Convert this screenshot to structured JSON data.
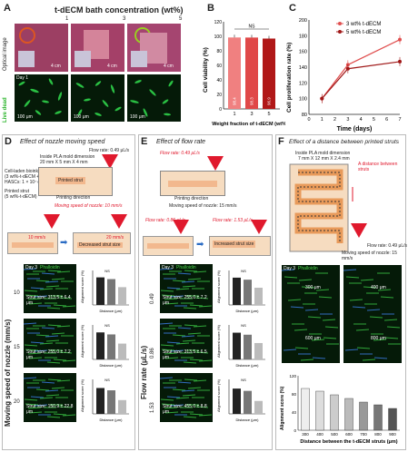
{
  "panelA": {
    "label": "A",
    "title": "t-dECM bath concentration (wt%)",
    "cols": [
      "1",
      "3",
      "5"
    ],
    "row1": "Optical image",
    "row2": "Live dead",
    "day": "Day 1",
    "scale_opt": "4 cm",
    "scale_mic": "100 μm"
  },
  "panelB": {
    "label": "B",
    "chart_data": {
      "type": "bar",
      "categories": [
        "1",
        "3",
        "5"
      ],
      "values": [
        98.4,
        98.3,
        96.9
      ],
      "bar_labels": [
        "98.4",
        "98.3",
        "96.9"
      ],
      "xlabel": "Weight fraction of t-dECM (wt%)",
      "ylabel": "Cell viability (%)",
      "ylim": [
        0,
        120
      ],
      "yticks": [
        "0",
        "20",
        "40",
        "60",
        "80",
        "100",
        "120"
      ],
      "annotation": "NS",
      "colors": [
        "#f08080",
        "#e04848",
        "#b01818"
      ]
    }
  },
  "panelC": {
    "label": "C",
    "chart_data": {
      "type": "line",
      "x": [
        1,
        3,
        7
      ],
      "series": [
        {
          "name": "3 wt% t-dECM",
          "values": [
            100,
            143,
            175
          ],
          "color": "#e05050"
        },
        {
          "name": "5 wt% t-dECM",
          "values": [
            100,
            138,
            147
          ],
          "color": "#a01818"
        }
      ],
      "xlabel": "Time (days)",
      "ylabel": "Cell proliferation rate (%)",
      "xlim": [
        0,
        7
      ],
      "ylim": [
        80,
        200
      ],
      "yticks": [
        "80",
        "100",
        "120",
        "140",
        "160",
        "180",
        "200"
      ],
      "xticks": [
        "0",
        "1",
        "2",
        "3",
        "4",
        "5",
        "6",
        "7"
      ]
    }
  },
  "panelD": {
    "label": "D",
    "title": "Effect of nozzle moving speed",
    "mold": "Inside PLA mold dimension",
    "mold_dim": "20 mm X 5 mm X 4 mm",
    "flow": "Flow rate: 0.49 μL/s",
    "bioink1": "Cell-laden bioink",
    "bioink2": "(3 wt%-t-dECM +",
    "bioink3": "HASCs: 1 × 10⁷ cells)",
    "strut": "Printed strut",
    "bath": "(5 wt%-t-dECM)",
    "printed": "Printed strut",
    "direction": "Printing direction",
    "moving": "Moving speed of nozzle: 10 mm/s",
    "speed_a": "10 mm/s",
    "speed_b": "20 mm/s",
    "decreased": "Decreased strut size",
    "axis": "Moving speed of nozzle (mm/s)",
    "rows": [
      {
        "value": "10",
        "strut": "Strut size: 313.5 ± 6.4 μm"
      },
      {
        "value": "15",
        "strut": "Strut size: 255.0 ± 7.2 μm"
      },
      {
        "value": "20",
        "strut": "Strut size: 150.9 ± 22.8 μm"
      }
    ],
    "day": "Day 3",
    "stain": "Phalloidin",
    "ylabel": "Alignment score (%)",
    "xlabel": "Distance (μm)",
    "bars": [
      [
        96,
        90,
        62
      ],
      [
        94,
        87,
        55
      ],
      [
        90,
        82,
        48
      ]
    ],
    "ns": "NS"
  },
  "panelE": {
    "label": "E",
    "title": "Effect of flow rate",
    "flow": "Flow rate: 0.49 μL/s",
    "direction": "Printing direction",
    "moving": "Moving speed of nozzle: 15 mm/s",
    "flow_a": "Flow rate: 0.86 μL/s",
    "flow_b": "Flow rate: 1.53 μL/s",
    "increased": "Increased strut size",
    "axis": "Flow rate (μL/s)",
    "rows": [
      {
        "value": "0.49",
        "strut": "Strut size: 255.0 ± 7.2 μm"
      },
      {
        "value": "0.86",
        "strut": "Strut size: 313.5 ± 6.5 μm"
      },
      {
        "value": "1.53",
        "strut": "Strut size: 455.0 ± 8.8 μm"
      }
    ],
    "day": "Day 3",
    "stain": "Phalloidin",
    "ylabel": "Alignment score (%)",
    "xlabel": "Distance (μm)",
    "bars": [
      [
        95,
        88,
        60
      ],
      [
        93,
        86,
        57
      ],
      [
        88,
        80,
        45
      ]
    ],
    "ns": "NS"
  },
  "panelF": {
    "label": "F",
    "title": "Effect of a distance between printed struts",
    "mold": "Inside PLA mold dimension",
    "mold_dim": "7 mm X 12 mm X 2.4 mm",
    "distance": "A distance between struts",
    "flow": "Flow rate: 0.49 μL/s",
    "moving": "Moving speed of nozzle: 15 mm/s",
    "day": "Day 3",
    "stain": "Phalloidin",
    "labels": [
      "300 μm",
      "400 μm",
      "600 μm",
      "800 μm"
    ],
    "chart_data": {
      "type": "bar",
      "categories": [
        "300",
        "400",
        "500",
        "600",
        "700",
        "800",
        "900"
      ],
      "values": [
        92,
        86,
        78,
        70,
        62,
        56,
        48
      ],
      "xlabel": "Distance between the t-dECM struts (μm)",
      "ylabel": "Alignment score (%)",
      "ylim": [
        0,
        120
      ],
      "yticks": [
        "0",
        "40",
        "80",
        "120"
      ]
    }
  }
}
